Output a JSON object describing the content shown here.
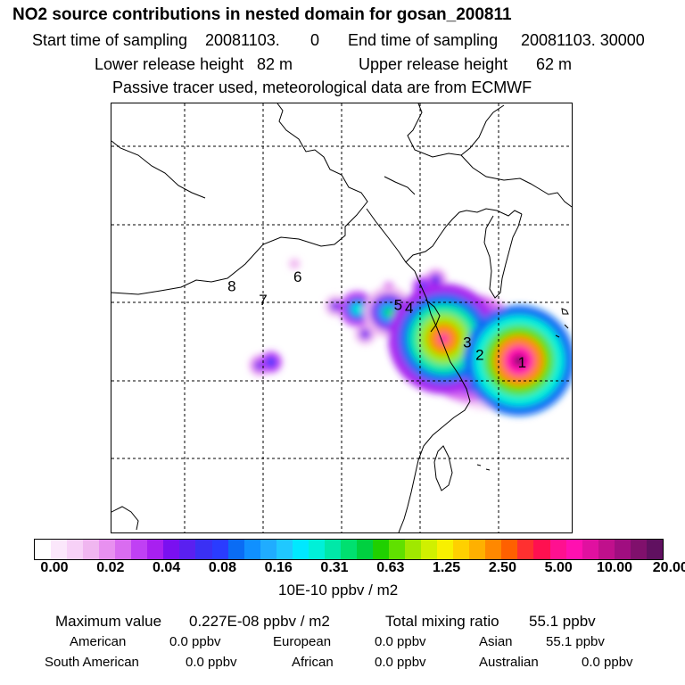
{
  "header": {
    "title": "NO2 source contributions in nested domain for gosan_200811",
    "start_label": "Start time of sampling",
    "start_value": "20081103.",
    "start_hour": "0",
    "end_label": "End time of sampling",
    "end_value": "20081103. 30000",
    "lower_label": "Lower release height",
    "lower_value": "82 m",
    "upper_label": "Upper release height",
    "upper_value": "62 m",
    "note": "Passive tracer used, meteorological data are from ECMWF"
  },
  "chart_data": {
    "type": "heatmap",
    "title": "NO2 source contributions in nested domain for gosan_200811",
    "colorbar": {
      "ticks": [
        "0.00",
        "0.02",
        "0.04",
        "0.08",
        "0.16",
        "0.31",
        "0.63",
        "1.25",
        "2.50",
        "5.00",
        "10.00",
        "20.00"
      ],
      "unit": "10E-10 ppbv / m2",
      "colors": [
        "#ffffff",
        "#fbe7fb",
        "#f7d1f7",
        "#f0b6f0",
        "#e890f0",
        "#d96cf0",
        "#c040f4",
        "#a820f0",
        "#7a10f0",
        "#5a20f0",
        "#3a30f4",
        "#2a3cff",
        "#0a6cf4",
        "#1090ff",
        "#20acff",
        "#20c8ff",
        "#00e8ff",
        "#00f0d8",
        "#00e8a8",
        "#00e070",
        "#00d040",
        "#20d000",
        "#60e000",
        "#a0e800",
        "#d0f000",
        "#f8f000",
        "#ffd000",
        "#ffb000",
        "#ff8800",
        "#ff6000",
        "#ff3030",
        "#ff1050",
        "#ff1090",
        "#ff10b0",
        "#e010a0",
        "#c0108c",
        "#a00e80",
        "#80106c",
        "#601060"
      ]
    },
    "source_markers": [
      {
        "label": "1",
        "lon": 121.5,
        "lat": 31.1
      },
      {
        "label": "2",
        "lon": 118.8,
        "lat": 31.6
      },
      {
        "label": "3",
        "lon": 118.0,
        "lat": 32.4
      },
      {
        "label": "4",
        "lon": 114.3,
        "lat": 34.6
      },
      {
        "label": "5",
        "lon": 113.6,
        "lat": 34.8
      },
      {
        "label": "6",
        "lon": 107.2,
        "lat": 36.6
      },
      {
        "label": "7",
        "lon": 105.0,
        "lat": 35.1
      },
      {
        "label": "8",
        "lon": 103.0,
        "lat": 36.0
      }
    ],
    "receptor": {
      "name": "gosan",
      "lon": 126.2,
      "lat": 33.3
    },
    "plumes": [
      {
        "lon": 116.5,
        "lat": 32.7,
        "value": 8.0
      },
      {
        "lon": 121.3,
        "lat": 31.3,
        "value": 20.0
      },
      {
        "lon": 118.2,
        "lat": 32.1,
        "value": 5.0
      },
      {
        "lon": 119.2,
        "lat": 31.4,
        "value": 3.0
      },
      {
        "lon": 115.5,
        "lat": 33.0,
        "value": 1.0
      },
      {
        "lon": 113.0,
        "lat": 34.4,
        "value": 0.4
      },
      {
        "lon": 111.0,
        "lat": 34.6,
        "value": 0.3
      },
      {
        "lon": 115.2,
        "lat": 36.0,
        "value": 0.1
      },
      {
        "lon": 117.0,
        "lat": 35.3,
        "value": 0.12
      },
      {
        "lon": 114.0,
        "lat": 31.5,
        "value": 0.1
      },
      {
        "lon": 105.5,
        "lat": 31.2,
        "value": 0.1
      },
      {
        "lon": 104.8,
        "lat": 31.0,
        "value": 0.06
      },
      {
        "lon": 111.5,
        "lat": 33.0,
        "value": 0.05
      },
      {
        "lon": 109.6,
        "lat": 34.8,
        "value": 0.05
      },
      {
        "lon": 116.0,
        "lat": 36.5,
        "value": 0.06
      },
      {
        "lon": 113.0,
        "lat": 36.0,
        "value": 0.03
      },
      {
        "lon": 107.0,
        "lat": 37.5,
        "value": 0.02
      }
    ]
  },
  "stats": {
    "max_label": "Maximum value",
    "max_value": "0.227E-08 ppbv / m2",
    "total_label": "Total mixing ratio",
    "total_value": "55.1 ppbv",
    "regions": [
      {
        "name": "American",
        "value": "0.0 ppbv"
      },
      {
        "name": "European",
        "value": "0.0 ppbv"
      },
      {
        "name": "Asian",
        "value": "55.1 ppbv"
      },
      {
        "name": "South American",
        "value": "0.0 ppbv"
      },
      {
        "name": "African",
        "value": "0.0 ppbv"
      },
      {
        "name": "Australian",
        "value": "0.0 ppbv"
      }
    ]
  }
}
